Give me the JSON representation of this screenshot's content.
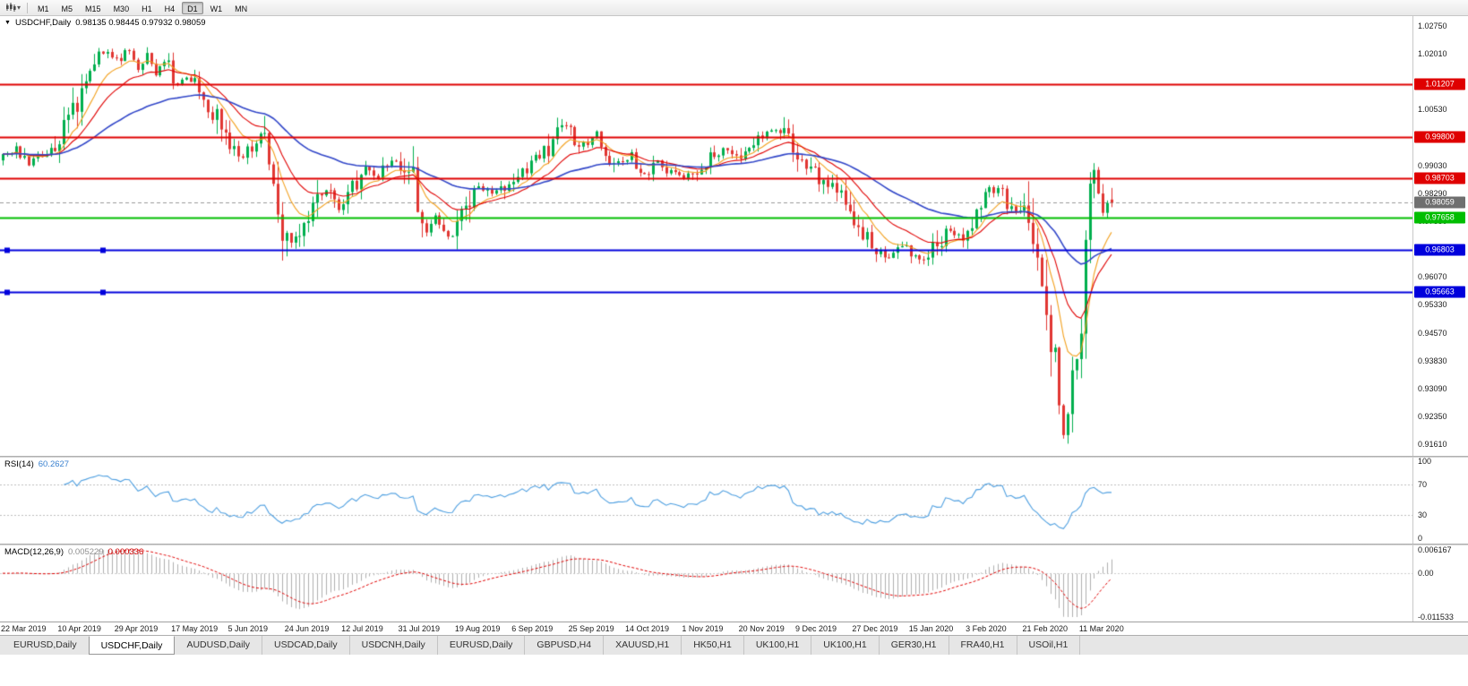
{
  "toolbar": {
    "timeframes": [
      {
        "label": "M1",
        "active": false
      },
      {
        "label": "M5",
        "active": false
      },
      {
        "label": "M15",
        "active": false
      },
      {
        "label": "M30",
        "active": false
      },
      {
        "label": "H1",
        "active": false
      },
      {
        "label": "H4",
        "active": false
      },
      {
        "label": "D1",
        "active": true
      },
      {
        "label": "W1",
        "active": false
      },
      {
        "label": "MN",
        "active": false
      }
    ]
  },
  "chart": {
    "title": {
      "collapse_icon": "▼",
      "symbol": "USDCHF,Daily",
      "ohlc": "0.98135 0.98445 0.97932 0.98059"
    },
    "y_axis": {
      "ticks": [
        {
          "label": "1.02750",
          "value": 1.0275
        },
        {
          "label": "1.02010",
          "value": 1.0201
        },
        {
          "label": "1.00530",
          "value": 1.0053
        },
        {
          "label": "0.99030",
          "value": 0.9903
        },
        {
          "label": "0.98290",
          "value": 0.9829
        },
        {
          "label": "0.97550",
          "value": 0.9755
        },
        {
          "label": "0.96070",
          "value": 0.9607
        },
        {
          "label": "0.95330",
          "value": 0.9533
        },
        {
          "label": "0.94570",
          "value": 0.9457
        },
        {
          "label": "0.93830",
          "value": 0.9383
        },
        {
          "label": "0.93090",
          "value": 0.9309
        },
        {
          "label": "0.92350",
          "value": 0.9235
        },
        {
          "label": "0.91610",
          "value": 0.9161
        }
      ]
    },
    "current_price": {
      "label": "0.98059",
      "value": 0.98059,
      "badge_color": "#6F6F6F",
      "line_color": "#9A9A9A"
    },
    "h_lines": [
      {
        "label": "1.01207",
        "value": 1.01207,
        "color": "#DF0000",
        "width": 2
      },
      {
        "label": "0.99800",
        "value": 0.998,
        "color": "#DF0000",
        "width": 2
      },
      {
        "label": "0.98703",
        "value": 0.98703,
        "color": "#DF0000",
        "width": 2
      },
      {
        "label": "0.97658",
        "value": 0.97658,
        "color": "#00BE00",
        "width": 2
      },
      {
        "label": "0.96803",
        "value": 0.96803,
        "color": "#0000DC",
        "width": 2,
        "handles": [
          8,
          115
        ]
      },
      {
        "label": "0.95663",
        "value": 0.95663,
        "color": "#0000DC",
        "width": 2,
        "handles": [
          8,
          115
        ]
      }
    ]
  },
  "chart_data": {
    "type": "candlestick",
    "symbol": "USDCHF",
    "period": "Daily",
    "count": 255,
    "ylim": [
      0.9131,
      1.0302
    ],
    "last_candle": {
      "open": 0.98135,
      "high": 0.98445,
      "low": 0.97932,
      "close": 0.98059
    },
    "up_color": "#00AF4E",
    "down_color": "#E13632",
    "anchors": [
      [
        0,
        0.9925
      ],
      [
        3,
        0.9945
      ],
      [
        6,
        0.9905
      ],
      [
        9,
        0.993
      ],
      [
        12,
        0.996
      ],
      [
        14,
        1.0005
      ],
      [
        17,
        1.008
      ],
      [
        20,
        1.0175
      ],
      [
        23,
        1.021
      ],
      [
        26,
        1.0185
      ],
      [
        29,
        1.0215
      ],
      [
        31,
        1.017
      ],
      [
        33,
        1.0195
      ],
      [
        35,
        1.015
      ],
      [
        37,
        1.0185
      ],
      [
        40,
        1.0125
      ],
      [
        43,
        1.014
      ],
      [
        46,
        1.009
      ],
      [
        49,
        1.0025
      ],
      [
        52,
        0.997
      ],
      [
        55,
        0.9925
      ],
      [
        58,
        0.9975
      ],
      [
        60,
        0.999
      ],
      [
        62,
        0.986
      ],
      [
        64,
        0.9745
      ],
      [
        66,
        0.9695
      ],
      [
        68,
        0.9725
      ],
      [
        71,
        0.979
      ],
      [
        74,
        0.9845
      ],
      [
        77,
        0.979
      ],
      [
        80,
        0.984
      ],
      [
        83,
        0.9895
      ],
      [
        86,
        0.9865
      ],
      [
        89,
        0.9925
      ],
      [
        92,
        0.989
      ],
      [
        94,
        0.9855
      ],
      [
        96,
        0.9725
      ],
      [
        99,
        0.9765
      ],
      [
        102,
        0.971
      ],
      [
        104,
        0.9745
      ],
      [
        106,
        0.979
      ],
      [
        109,
        0.9855
      ],
      [
        112,
        0.9825
      ],
      [
        115,
        0.985
      ],
      [
        118,
        0.9885
      ],
      [
        121,
        0.9905
      ],
      [
        124,
        0.9935
      ],
      [
        127,
        0.9985
      ],
      [
        129,
        1.0015
      ],
      [
        131,
        0.997
      ],
      [
        134,
        0.9955
      ],
      [
        136,
        0.999
      ],
      [
        139,
        0.9935
      ],
      [
        141,
        0.9905
      ],
      [
        144,
        0.993
      ],
      [
        147,
        0.988
      ],
      [
        150,
        0.9915
      ],
      [
        153,
        0.989
      ],
      [
        156,
        0.9868
      ],
      [
        159,
        0.9895
      ],
      [
        162,
        0.9925
      ],
      [
        165,
        0.9945
      ],
      [
        168,
        0.9922
      ],
      [
        171,
        0.9962
      ],
      [
        174,
        0.9985
      ],
      [
        177,
        1.0005
      ],
      [
        180,
        0.9975
      ],
      [
        182,
        0.9932
      ],
      [
        185,
        0.9895
      ],
      [
        188,
        0.9858
      ],
      [
        191,
        0.983
      ],
      [
        194,
        0.9782
      ],
      [
        197,
        0.9722
      ],
      [
        200,
        0.9682
      ],
      [
        203,
        0.9656
      ],
      [
        206,
        0.969
      ],
      [
        208,
        0.9676
      ],
      [
        211,
        0.9646
      ],
      [
        214,
        0.9692
      ],
      [
        217,
        0.9736
      ],
      [
        220,
        0.9712
      ],
      [
        223,
        0.9776
      ],
      [
        226,
        0.983
      ],
      [
        228,
        0.9846
      ],
      [
        230,
        0.9806
      ],
      [
        232,
        0.9776
      ],
      [
        234,
        0.9792
      ],
      [
        236,
        0.9692
      ],
      [
        238,
        0.9582
      ],
      [
        240,
        0.9442
      ],
      [
        242,
        0.9292
      ],
      [
        243,
        0.9186
      ],
      [
        244,
        0.9262
      ],
      [
        245,
        0.9402
      ],
      [
        246,
        0.9342
      ],
      [
        247,
        0.9482
      ],
      [
        248,
        0.9652
      ],
      [
        249,
        0.9822
      ],
      [
        250,
        0.9898
      ],
      [
        251,
        0.9836
      ],
      [
        252,
        0.9766
      ],
      [
        253,
        0.9796
      ],
      [
        254,
        0.98059
      ]
    ],
    "moving_averages": [
      {
        "period": 9,
        "color": "#F2A01E"
      },
      {
        "period": 18,
        "color": "#E00000"
      },
      {
        "period": 50,
        "color": "#3146C8"
      }
    ],
    "x_labels": [
      "22 Mar 2019",
      "10 Apr 2019",
      "29 Apr 2019",
      "17 May 2019",
      "5 Jun 2019",
      "24 Jun 2019",
      "12 Jul 2019",
      "31 Jul 2019",
      "19 Aug 2019",
      "6 Sep 2019",
      "25 Sep 2019",
      "14 Oct 2019",
      "1 Nov 2019",
      "20 Nov 2019",
      "9 Dec 2019",
      "27 Dec 2019",
      "15 Jan 2020",
      "3 Feb 2020",
      "21 Feb 2020",
      "11 Mar 2020"
    ],
    "label_step": 13
  },
  "rsi": {
    "name": "RSI(14)",
    "value": "60.2627",
    "period": 14,
    "line_color": "#4E9FE0",
    "levels": [
      {
        "label": "100",
        "value": 100
      },
      {
        "label": "70",
        "value": 70
      },
      {
        "label": "30",
        "value": 30
      },
      {
        "label": "0",
        "value": 0
      }
    ],
    "dotted_levels": [
      70,
      30
    ]
  },
  "macd": {
    "name": "MACD(12,26,9)",
    "value_main": "0.005229",
    "value_signal": "0.000336",
    "fast": 12,
    "slow": 26,
    "signal": 9,
    "hist_color": "#AFAFAF",
    "signal_color": "#E00000",
    "max": 0.006167,
    "min": -0.011533,
    "axis": [
      {
        "label": "0.006167",
        "value": 0.006167
      },
      {
        "label": "0.00",
        "value": 0
      },
      {
        "label": "-0.011533",
        "value": -0.011533
      }
    ]
  },
  "tabs": [
    {
      "label": "EURUSD,Daily",
      "active": false
    },
    {
      "label": "USDCHF,Daily",
      "active": true
    },
    {
      "label": "AUDUSD,Daily",
      "active": false
    },
    {
      "label": "USDCAD,Daily",
      "active": false
    },
    {
      "label": "USDCNH,Daily",
      "active": false
    },
    {
      "label": "EURUSD,Daily",
      "active": false
    },
    {
      "label": "GBPUSD,H4",
      "active": false
    },
    {
      "label": "XAUUSD,H1",
      "active": false
    },
    {
      "label": "HK50,H1",
      "active": false
    },
    {
      "label": "UK100,H1",
      "active": false
    },
    {
      "label": "UK100,H1",
      "active": false
    },
    {
      "label": "GER30,H1",
      "active": false
    },
    {
      "label": "FRA40,H1",
      "active": false
    },
    {
      "label": "USOil,H1",
      "active": false
    }
  ]
}
